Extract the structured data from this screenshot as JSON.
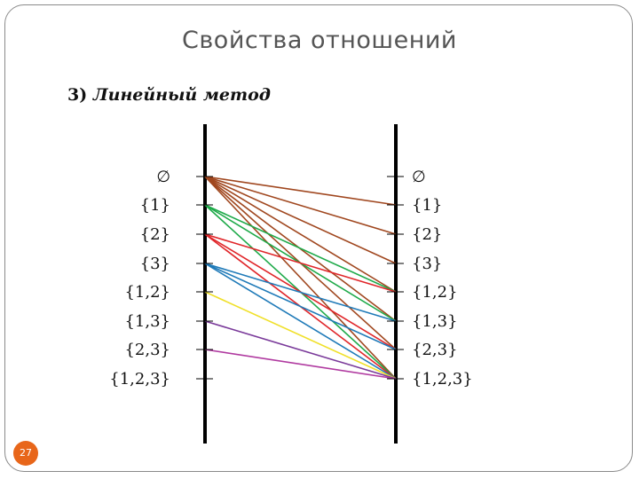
{
  "slide": {
    "title": "Свойства отношений",
    "subtitle_number": "3)",
    "subtitle_text": "Линейный метод",
    "page_number": "27"
  },
  "diagram": {
    "left_labels": [
      "∅",
      "{1}",
      "{2}",
      "{3}",
      "{1,2}",
      "{1,3}",
      "{2,3}",
      "{1,2,3}"
    ],
    "right_labels": [
      "∅",
      "{1}",
      "{2}",
      "{3}",
      "{1,2}",
      "{1,3}",
      "{2,3}",
      "{1,2,3}"
    ],
    "edges": [
      {
        "from": 0,
        "to": 1,
        "color": "#a0471f"
      },
      {
        "from": 0,
        "to": 2,
        "color": "#a0471f"
      },
      {
        "from": 0,
        "to": 3,
        "color": "#a0471f"
      },
      {
        "from": 0,
        "to": 4,
        "color": "#a0471f"
      },
      {
        "from": 0,
        "to": 5,
        "color": "#a0471f"
      },
      {
        "from": 0,
        "to": 6,
        "color": "#a0471f"
      },
      {
        "from": 0,
        "to": 7,
        "color": "#a0471f"
      },
      {
        "from": 1,
        "to": 4,
        "color": "#1faa4a"
      },
      {
        "from": 1,
        "to": 5,
        "color": "#1faa4a"
      },
      {
        "from": 1,
        "to": 7,
        "color": "#1faa4a"
      },
      {
        "from": 2,
        "to": 4,
        "color": "#e0262a"
      },
      {
        "from": 2,
        "to": 6,
        "color": "#e0262a"
      },
      {
        "from": 2,
        "to": 7,
        "color": "#e0262a"
      },
      {
        "from": 3,
        "to": 5,
        "color": "#1f7ab8"
      },
      {
        "from": 3,
        "to": 6,
        "color": "#1f7ab8"
      },
      {
        "from": 3,
        "to": 7,
        "color": "#1f7ab8"
      },
      {
        "from": 4,
        "to": 7,
        "color": "#f0e02a"
      },
      {
        "from": 5,
        "to": 7,
        "color": "#7a3a9a"
      },
      {
        "from": 6,
        "to": 7,
        "color": "#b03aa0"
      }
    ]
  }
}
